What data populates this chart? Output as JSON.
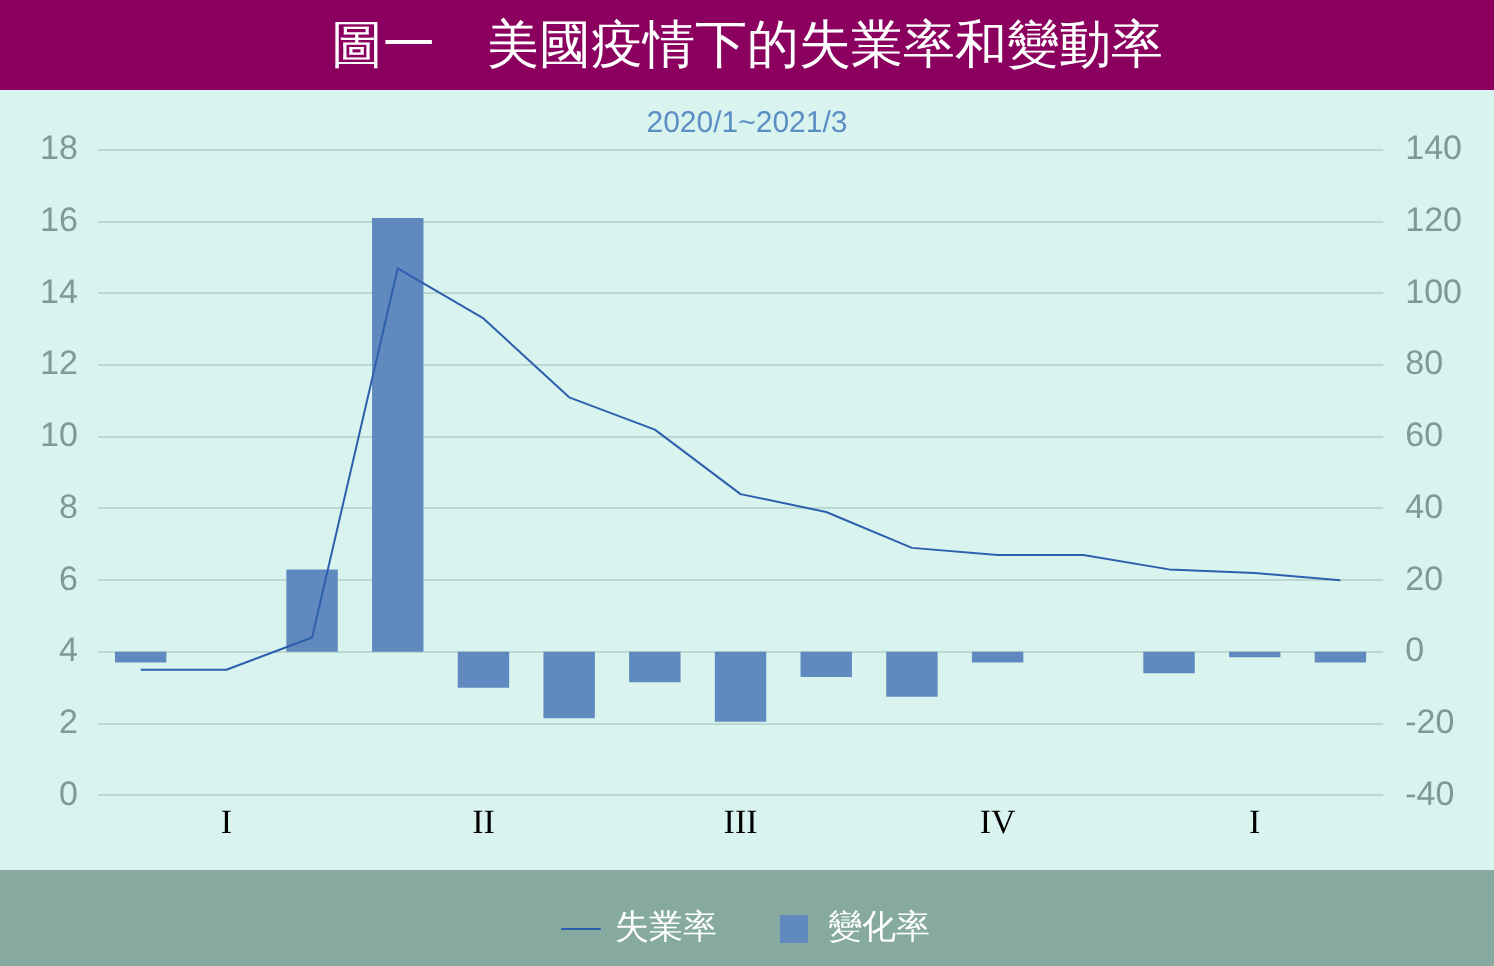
{
  "chart_data": {
    "type": "bar",
    "title": "圖一　美國疫情下的失業率和變動率",
    "subtitle": "2020/1~2021/3",
    "categories": [
      null,
      "I",
      null,
      null,
      "II",
      null,
      null,
      "III",
      null,
      null,
      "IV",
      null,
      null,
      "I",
      null
    ],
    "series": [
      {
        "name": "失業率",
        "type": "line",
        "color": "#2e5fae",
        "values": [
          3.5,
          3.5,
          4.4,
          14.7,
          13.3,
          11.1,
          10.2,
          8.4,
          7.9,
          6.9,
          6.7,
          6.7,
          6.3,
          6.2,
          6.0
        ]
      },
      {
        "name": "變化率",
        "axis": "y2",
        "color": "#6089bf",
        "values": [
          -3,
          0,
          23,
          121,
          -10,
          -18.5,
          -8.5,
          -19.5,
          -7,
          -12.5,
          -3,
          0,
          -6,
          -1.5,
          -3
        ]
      }
    ],
    "ylim": [
      0,
      18
    ],
    "yticks": [
      0,
      2,
      4,
      6,
      8,
      10,
      12,
      14,
      16,
      18
    ],
    "y2lim": [
      -40,
      140
    ],
    "y2ticks": [
      -40,
      -20,
      0,
      20,
      40,
      60,
      80,
      100,
      120,
      140
    ],
    "grid": "y",
    "legend": "bottom",
    "marker": "none",
    "line_style": "solid"
  }
}
